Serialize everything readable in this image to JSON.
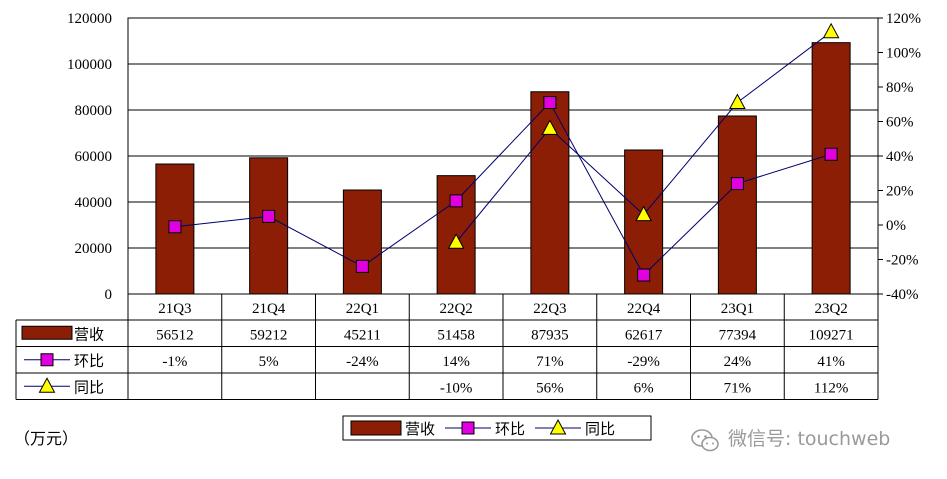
{
  "chart_data": {
    "type": "bar",
    "categories": [
      "21Q3",
      "21Q4",
      "22Q1",
      "22Q2",
      "22Q3",
      "22Q4",
      "23Q1",
      "23Q2"
    ],
    "series": [
      {
        "name": "营收",
        "kind": "bar",
        "axis": "left",
        "color": "#8B1E05",
        "values": [
          56512,
          59212,
          45211,
          51458,
          87935,
          62617,
          77394,
          109271
        ],
        "labels": [
          "56512",
          "59212",
          "45211",
          "51458",
          "87935",
          "62617",
          "77394",
          "109271"
        ]
      },
      {
        "name": "环比",
        "kind": "line",
        "axis": "right",
        "color": "#E000E0",
        "marker": "square",
        "values": [
          -1,
          5,
          -24,
          14,
          71,
          -29,
          24,
          41
        ],
        "labels": [
          "-1%",
          "5%",
          "-24%",
          "14%",
          "71%",
          "-29%",
          "24%",
          "41%"
        ]
      },
      {
        "name": "同比",
        "kind": "line",
        "axis": "right",
        "color": "#FFFF00",
        "marker": "triangle",
        "values": [
          null,
          null,
          null,
          -10,
          56,
          6,
          71,
          112
        ],
        "labels": [
          "",
          "",
          "",
          "-10%",
          "56%",
          "6%",
          "71%",
          "112%"
        ]
      }
    ],
    "ylim": [
      0,
      120000
    ],
    "yticks": [
      "0",
      "20000",
      "40000",
      "60000",
      "80000",
      "100000",
      "120000"
    ],
    "y2lim": [
      -40,
      120
    ],
    "y2ticks": [
      "-40%",
      "-20%",
      "0%",
      "20%",
      "40%",
      "60%",
      "80%",
      "100%",
      "120%"
    ],
    "unit": "（万元）",
    "legend": [
      "营收",
      "环比",
      "同比"
    ],
    "line_color": "#00006E",
    "grid": true,
    "data_table": true
  },
  "watermark": "微信号: touchweb"
}
